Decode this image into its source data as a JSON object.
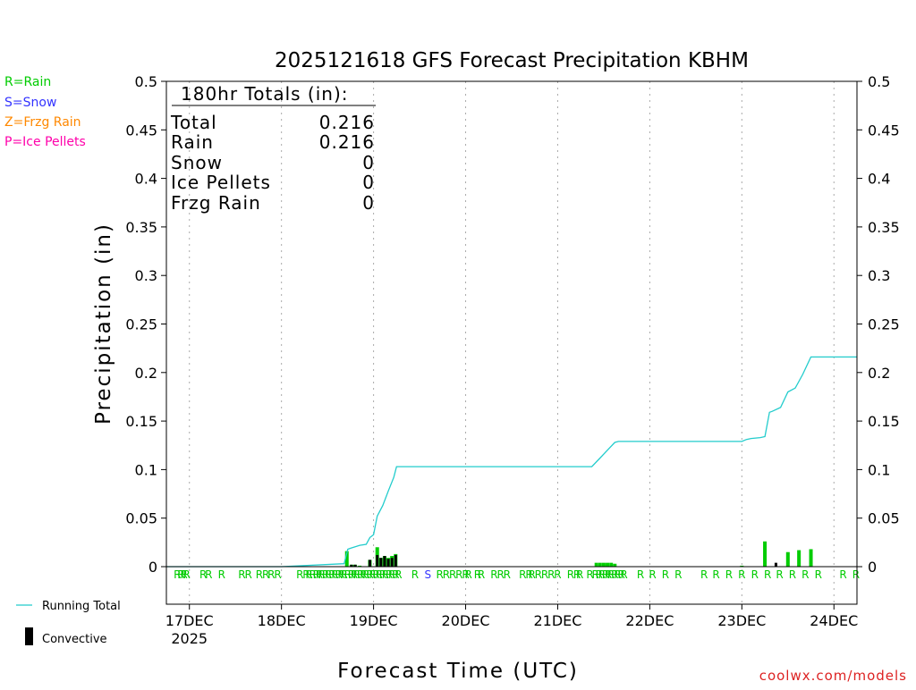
{
  "colors": {
    "rain": "#00cc00",
    "snow": "#3333ff",
    "frzg_rain": "#ff8800",
    "ice_pellets": "#ff00aa",
    "running_total": "#22cccc",
    "convective": "#000000",
    "credit": "#dd2222"
  },
  "key": [
    "R=Rain",
    "S=Snow",
    "Z=Frzg Rain",
    "P=Ice Pellets"
  ],
  "credit": "coolwx.com/models",
  "totals_box": {
    "header": "180hr Totals (in):",
    "rows": [
      {
        "label": "Total",
        "value": "0.216"
      },
      {
        "label": "Rain",
        "value": "0.216"
      },
      {
        "label": "Snow",
        "value": "0"
      },
      {
        "label": "Ice Pellets",
        "value": "0"
      },
      {
        "label": "Frzg Rain",
        "value": "0"
      }
    ]
  },
  "chart_data": {
    "type": "bar",
    "title": "2025121618 GFS Forecast Precipitation KBHM",
    "xlabel": "Forecast Time (UTC)",
    "ylabel": "Precipitation (in)",
    "ylim": [
      0,
      0.5
    ],
    "yticks": [
      "0",
      "0.05",
      "0.1",
      "0.15",
      "0.2",
      "0.25",
      "0.3",
      "0.35",
      "0.4",
      "0.45",
      "0.5"
    ],
    "x_unit": "days since 17DEC 00Z",
    "xlim": [
      -0.25,
      7.25
    ],
    "xticks": [
      "17DEC",
      "18DEC",
      "19DEC",
      "20DEC",
      "21DEC",
      "22DEC",
      "23DEC",
      "24DEC"
    ],
    "xtick_sub": "2025",
    "grid": "vertical dotted",
    "legend": [
      {
        "name": "Running Total",
        "style": "line"
      },
      {
        "name": "Convective",
        "style": "bar"
      }
    ],
    "running_total": {
      "x": [
        -0.25,
        0.0,
        1.0,
        1.68,
        1.72,
        1.75,
        1.85,
        1.92,
        1.96,
        2.0,
        2.04,
        2.1,
        2.16,
        2.22,
        2.25,
        2.5,
        3.0,
        3.5,
        4.0,
        4.37,
        4.45,
        4.55,
        4.62,
        4.66,
        5.0,
        5.5,
        6.0,
        6.05,
        6.1,
        6.2,
        6.25,
        6.3,
        6.33,
        6.42,
        6.5,
        6.58,
        6.66,
        6.75,
        7.0,
        7.25
      ],
      "y": [
        0,
        0,
        0,
        0.003,
        0.018,
        0.019,
        0.022,
        0.023,
        0.03,
        0.033,
        0.052,
        0.063,
        0.078,
        0.092,
        0.103,
        0.103,
        0.103,
        0.103,
        0.103,
        0.103,
        0.111,
        0.121,
        0.128,
        0.129,
        0.129,
        0.129,
        0.129,
        0.131,
        0.132,
        0.133,
        0.134,
        0.159,
        0.16,
        0.164,
        0.18,
        0.184,
        0.198,
        0.216,
        0.216,
        0.216
      ]
    },
    "total_bars": {
      "x": [
        1.71,
        1.76,
        1.8,
        1.85,
        1.96,
        2.04,
        2.08,
        2.12,
        2.16,
        2.2,
        2.24,
        4.42,
        4.46,
        4.5,
        4.54,
        4.58,
        4.62,
        6.0,
        6.25,
        6.5,
        6.62,
        6.75
      ],
      "values": [
        0.016,
        0.002,
        0.002,
        0.001,
        0.007,
        0.02,
        0.009,
        0.011,
        0.009,
        0.011,
        0.013,
        0.004,
        0.004,
        0.004,
        0.004,
        0.004,
        0.003,
        0.001,
        0.026,
        0.015,
        0.017,
        0.018
      ]
    },
    "convective_bars": {
      "x": [
        1.76,
        1.8,
        1.96,
        2.04,
        2.08,
        2.12,
        2.16,
        2.2,
        2.24,
        6.37
      ],
      "values": [
        0.002,
        0.002,
        0.007,
        0.012,
        0.009,
        0.011,
        0.008,
        0.009,
        0.012,
        0.004
      ]
    },
    "ptype_markers": {
      "x": [
        -0.13,
        -0.09,
        -0.06,
        -0.03,
        0.15,
        0.21,
        0.35,
        0.57,
        0.64,
        0.76,
        0.83,
        0.89,
        0.96,
        1.2,
        1.27,
        1.3,
        1.34,
        1.38,
        1.41,
        1.44,
        1.48,
        1.51,
        1.55,
        1.58,
        1.62,
        1.65,
        1.68,
        1.72,
        1.76,
        1.79,
        1.82,
        1.86,
        1.89,
        1.92,
        1.96,
        1.99,
        2.03,
        2.06,
        2.1,
        2.13,
        2.17,
        2.2,
        2.24,
        2.27,
        2.45,
        2.59,
        2.72,
        2.79,
        2.86,
        2.93,
        3.0,
        3.03,
        3.13,
        3.17,
        3.31,
        3.38,
        3.45,
        3.62,
        3.69,
        3.72,
        3.79,
        3.86,
        3.93,
        4.0,
        4.14,
        4.21,
        4.24,
        4.35,
        4.41,
        4.45,
        4.48,
        4.52,
        4.55,
        4.58,
        4.62,
        4.65,
        4.69,
        4.72,
        4.9,
        5.03,
        5.17,
        5.31,
        5.59,
        5.72,
        5.86,
        6.0,
        6.14,
        6.28,
        6.41,
        6.55,
        6.69,
        6.83,
        7.1,
        7.24
      ],
      "labels": [
        "R",
        "R",
        "R",
        "R",
        "R",
        "R",
        "R",
        "R",
        "R",
        "R",
        "R",
        "R",
        "R",
        "R",
        "R",
        "R",
        "R",
        "R",
        "R",
        "R",
        "R",
        "R",
        "R",
        "R",
        "R",
        "R",
        "R",
        "R",
        "R",
        "R",
        "R",
        "R",
        "R",
        "R",
        "R",
        "R",
        "R",
        "R",
        "R",
        "R",
        "R",
        "R",
        "R",
        "R",
        "R",
        "S",
        "R",
        "R",
        "R",
        "R",
        "R",
        "R",
        "R",
        "R",
        "R",
        "R",
        "R",
        "R",
        "R",
        "R",
        "R",
        "R",
        "R",
        "R",
        "R",
        "R",
        "R",
        "R",
        "R",
        "R",
        "R",
        "R",
        "R",
        "R",
        "R",
        "R",
        "R",
        "R",
        "R",
        "R",
        "R",
        "R",
        "R",
        "R",
        "R",
        "R",
        "R",
        "R",
        "R",
        "R",
        "R",
        "R",
        "R",
        "R"
      ]
    }
  }
}
